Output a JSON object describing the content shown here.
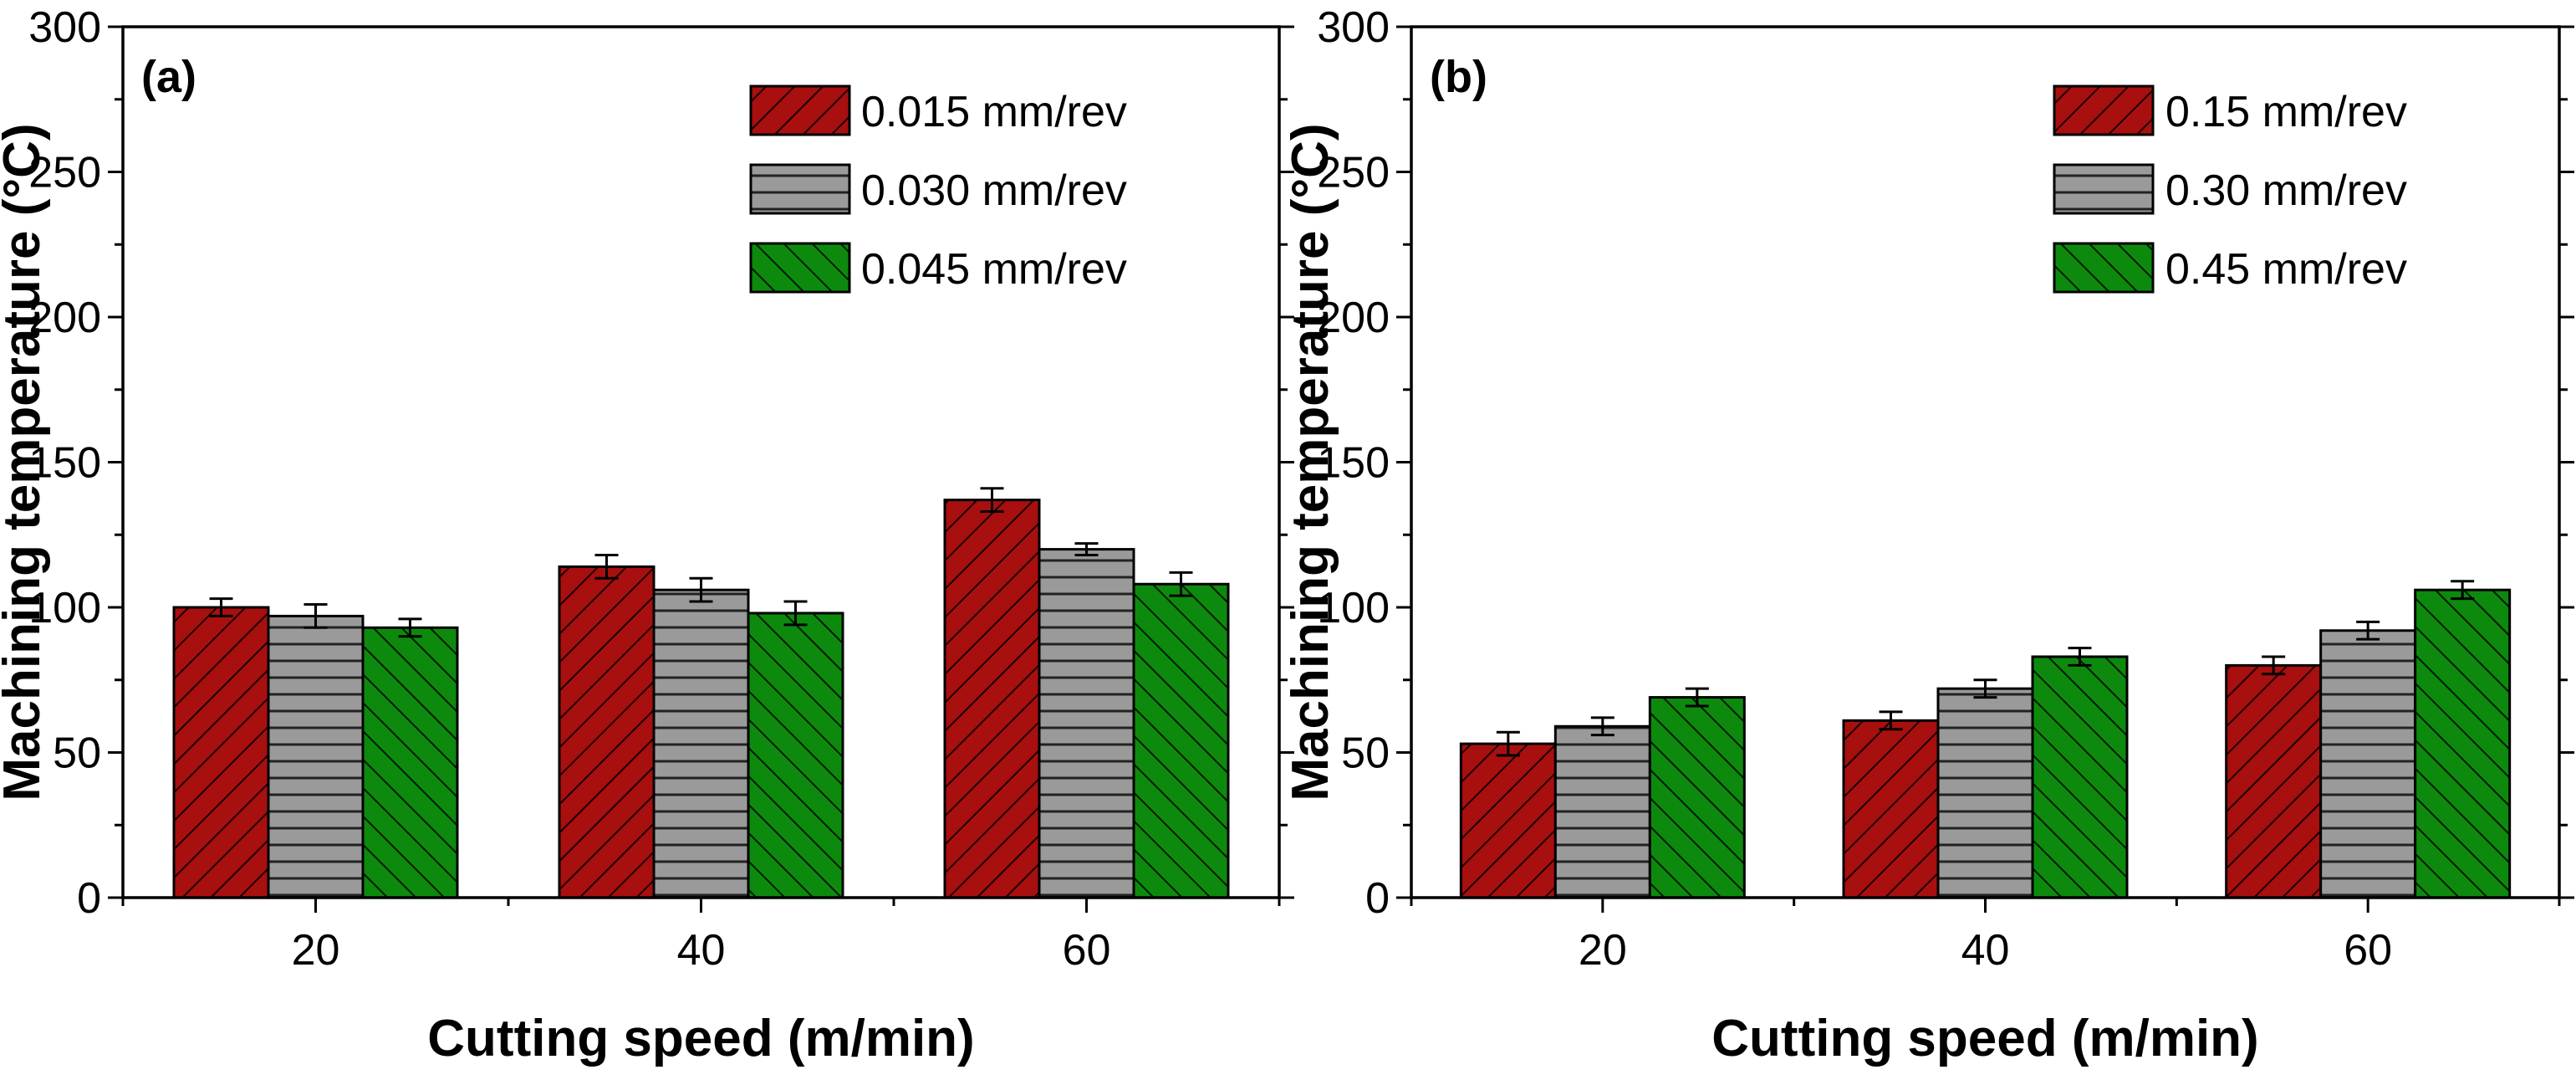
{
  "chart_data": [
    {
      "type": "bar",
      "panel_label": "(a)",
      "categories": [
        "20",
        "40",
        "60"
      ],
      "series": [
        {
          "name": "0.015 mm/rev",
          "color": "#a80f0f",
          "pattern": "diag-right",
          "values": [
            100,
            114,
            137
          ],
          "errors": [
            3,
            4,
            4
          ]
        },
        {
          "name": "0.030 mm/rev",
          "color": "#999999",
          "pattern": "horizontal",
          "values": [
            97,
            106,
            120
          ],
          "errors": [
            4,
            4,
            2
          ]
        },
        {
          "name": "0.045 mm/rev",
          "color": "#0d8a0d",
          "pattern": "diag-left",
          "values": [
            93,
            98,
            108
          ],
          "errors": [
            3,
            4,
            4
          ]
        }
      ],
      "xlabel": "Cutting speed (m/min)",
      "ylabel": "Machining temperature (°C)",
      "ylim": [
        0,
        300
      ],
      "yticks": [
        "0",
        "50",
        "100",
        "150",
        "200",
        "250",
        "300"
      ],
      "legend_position": "top-right"
    },
    {
      "type": "bar",
      "panel_label": "(b)",
      "categories": [
        "20",
        "40",
        "60"
      ],
      "series": [
        {
          "name": "0.15 mm/rev",
          "color": "#a80f0f",
          "pattern": "diag-right",
          "values": [
            53,
            61,
            80
          ],
          "errors": [
            4,
            3,
            3
          ]
        },
        {
          "name": "0.30 mm/rev",
          "color": "#999999",
          "pattern": "horizontal",
          "values": [
            59,
            72,
            92
          ],
          "errors": [
            3,
            3,
            3
          ]
        },
        {
          "name": "0.45 mm/rev",
          "color": "#0d8a0d",
          "pattern": "diag-left",
          "values": [
            69,
            83,
            106
          ],
          "errors": [
            3,
            3,
            3
          ]
        }
      ],
      "xlabel": "Cutting speed (m/min)",
      "ylabel": "Machining temperature (°C)",
      "ylim": [
        0,
        300
      ],
      "yticks": [
        "0",
        "50",
        "100",
        "150",
        "200",
        "250",
        "300"
      ],
      "legend_position": "top-right"
    }
  ]
}
